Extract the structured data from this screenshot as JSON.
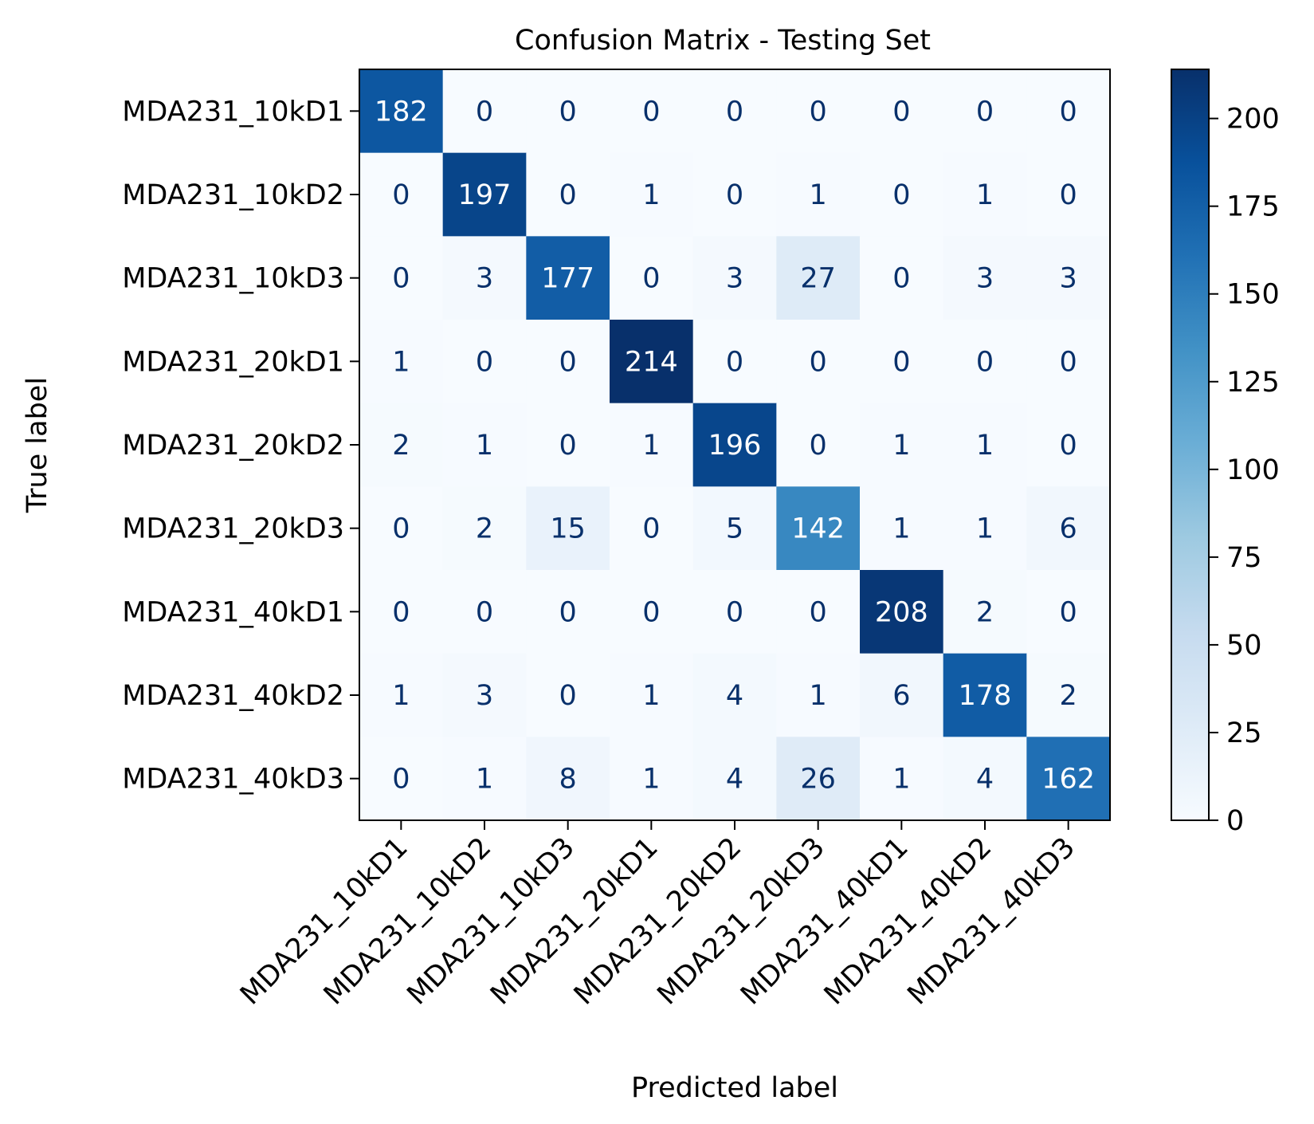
{
  "chart_data": {
    "type": "heatmap",
    "title": "Confusion Matrix - Testing Set",
    "xlabel": "Predicted label",
    "ylabel": "True label",
    "x_categories": [
      "MDA231_10kD1",
      "MDA231_10kD2",
      "MDA231_10kD3",
      "MDA231_20kD1",
      "MDA231_20kD2",
      "MDA231_20kD3",
      "MDA231_40kD1",
      "MDA231_40kD2",
      "MDA231_40kD3"
    ],
    "y_categories": [
      "MDA231_10kD1",
      "MDA231_10kD2",
      "MDA231_10kD3",
      "MDA231_20kD1",
      "MDA231_20kD2",
      "MDA231_20kD3",
      "MDA231_40kD1",
      "MDA231_40kD2",
      "MDA231_40kD3"
    ],
    "values": [
      [
        182,
        0,
        0,
        0,
        0,
        0,
        0,
        0,
        0
      ],
      [
        0,
        197,
        0,
        1,
        0,
        1,
        0,
        1,
        0
      ],
      [
        0,
        3,
        177,
        0,
        3,
        27,
        0,
        3,
        3
      ],
      [
        1,
        0,
        0,
        214,
        0,
        0,
        0,
        0,
        0
      ],
      [
        2,
        1,
        0,
        1,
        196,
        0,
        1,
        1,
        0
      ],
      [
        0,
        2,
        15,
        0,
        5,
        142,
        1,
        1,
        6
      ],
      [
        0,
        0,
        0,
        0,
        0,
        0,
        208,
        2,
        0
      ],
      [
        1,
        3,
        0,
        1,
        4,
        1,
        6,
        178,
        2
      ],
      [
        0,
        1,
        8,
        1,
        4,
        26,
        1,
        4,
        162
      ]
    ],
    "colormap": "Blues",
    "colorbar": {
      "range": [
        0,
        214
      ],
      "ticks": [
        0,
        25,
        50,
        75,
        100,
        125,
        150,
        175,
        200
      ]
    },
    "colors": {
      "low": "#f7fbff",
      "high": "#08306b",
      "text_dark": "#08306b",
      "text_light": "#ffffff"
    }
  }
}
